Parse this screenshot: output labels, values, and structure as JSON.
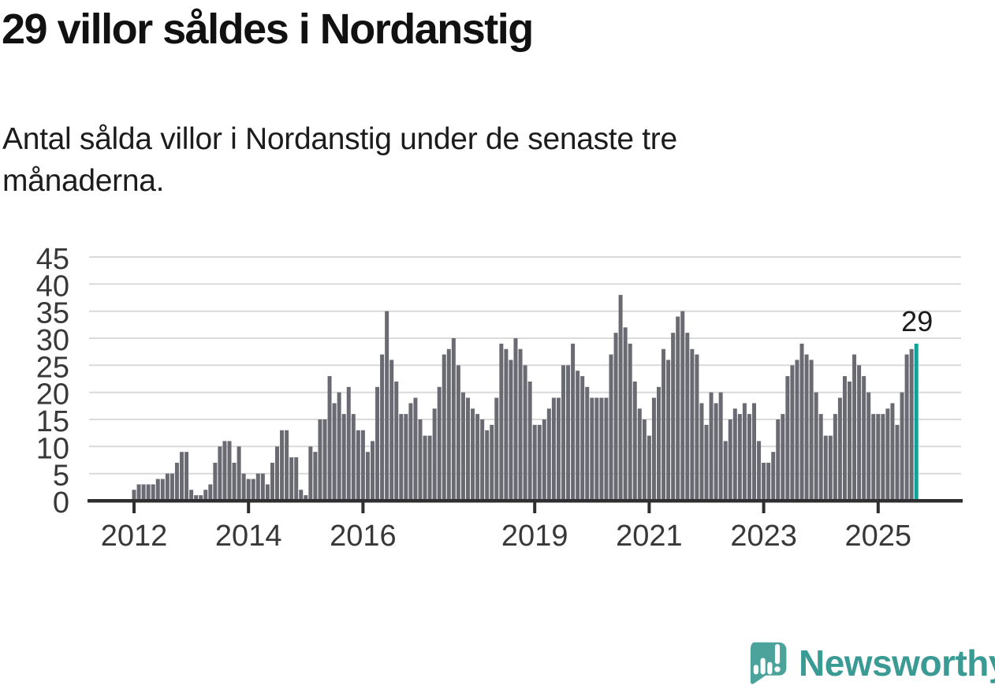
{
  "header": {
    "title": "29 villor såldes i Nordanstig",
    "subtitle": "Antal sålda villor i Nordanstig under de senaste tre\nmånaderna."
  },
  "chart_data": {
    "type": "bar",
    "title": "29 villor såldes i Nordanstig",
    "subtitle": "Antal sålda villor i Nordanstig under de senaste tre månaderna.",
    "x_start": "2012-01",
    "x_end": "2025-09",
    "x_frequency": "monthly",
    "xlabel": "",
    "ylabel": "",
    "ylim": [
      0,
      45
    ],
    "y_ticks": [
      0,
      5,
      10,
      15,
      20,
      25,
      30,
      35,
      40,
      45
    ],
    "x_tick_labels": [
      "2012",
      "2014",
      "2016",
      "2019",
      "2021",
      "2023",
      "2025"
    ],
    "grid": "horizontal",
    "legend": "none",
    "values": [
      2,
      3,
      3,
      3,
      3,
      4,
      4,
      5,
      5,
      7,
      9,
      9,
      2,
      1,
      1,
      2,
      3,
      7,
      10,
      11,
      11,
      7,
      10,
      5,
      4,
      4,
      5,
      5,
      3,
      7,
      10,
      13,
      13,
      8,
      8,
      2,
      1,
      10,
      9,
      15,
      15,
      23,
      18,
      20,
      16,
      21,
      16,
      13,
      13,
      9,
      11,
      21,
      27,
      35,
      26,
      22,
      16,
      16,
      18,
      19,
      15,
      12,
      12,
      17,
      21,
      27,
      28,
      30,
      25,
      20,
      19,
      17,
      16,
      15,
      13,
      14,
      19,
      29,
      28,
      26,
      30,
      28,
      25,
      22,
      14,
      14,
      15,
      17,
      19,
      19,
      25,
      25,
      29,
      24,
      23,
      21,
      19,
      19,
      19,
      19,
      27,
      31,
      38,
      32,
      29,
      22,
      17,
      15,
      12,
      19,
      21,
      28,
      26,
      31,
      34,
      35,
      31,
      28,
      27,
      18,
      14,
      20,
      18,
      20,
      11,
      15,
      17,
      16,
      18,
      16,
      18,
      11,
      7,
      7,
      9,
      15,
      16,
      23,
      25,
      26,
      29,
      27,
      26,
      20,
      16,
      12,
      12,
      16,
      19,
      23,
      22,
      27,
      25,
      23,
      20,
      16,
      16,
      16,
      17,
      18,
      14,
      20,
      27,
      28,
      29
    ],
    "highlight": {
      "position": "last",
      "label": "29",
      "value": 29,
      "color": "#10a29a"
    }
  },
  "footer": {
    "brand_name": "Newsworthy"
  },
  "colors": {
    "accent_teal": "#10a29a",
    "bar_gray": "#6a6a72",
    "grid_line": "#dadada",
    "axis_line": "#2f2f2f",
    "axis_text": "#383838",
    "title_text": "#111111",
    "subtitle_text": "#1c1c1c",
    "logo_teal": "#4ba39c",
    "wordmark_teal": "#3a9a94"
  }
}
